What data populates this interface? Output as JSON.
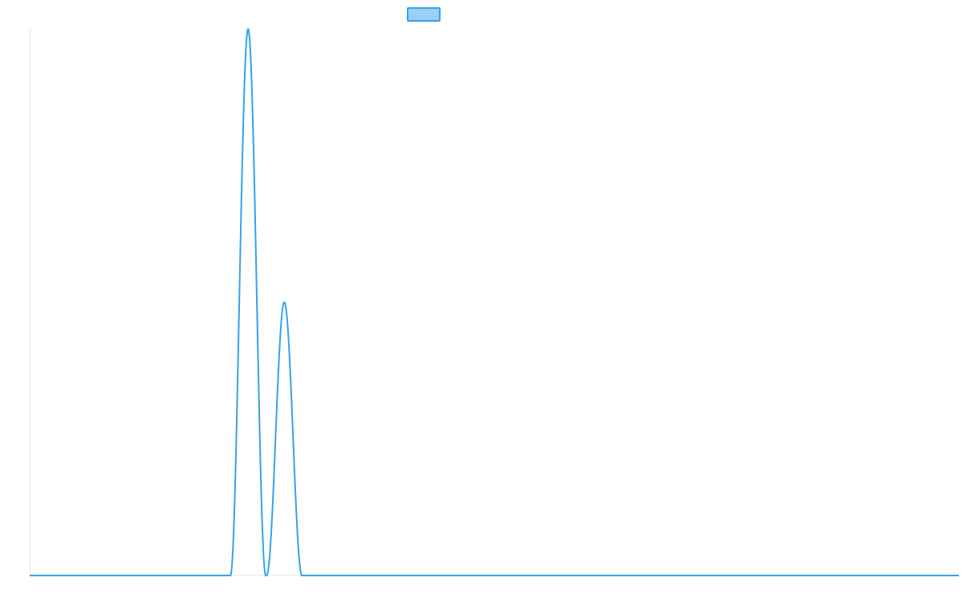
{
  "chart_data": {
    "type": "line",
    "title": "",
    "xlabel": "",
    "ylabel": "",
    "xlim": [
      0,
      1000
    ],
    "ylim": [
      0,
      100
    ],
    "grid": false,
    "legend": {
      "placement": "top-center",
      "entries": [
        {
          "name": "",
          "color": "#36a2eb",
          "fill": "#9ad0f5"
        }
      ]
    },
    "series": [
      {
        "color": "#36a2eb",
        "peaks": [
          {
            "center": 235,
            "height": 100,
            "half_width": 19
          },
          {
            "center": 274,
            "height": 50,
            "half_width": 19
          }
        ]
      }
    ]
  }
}
